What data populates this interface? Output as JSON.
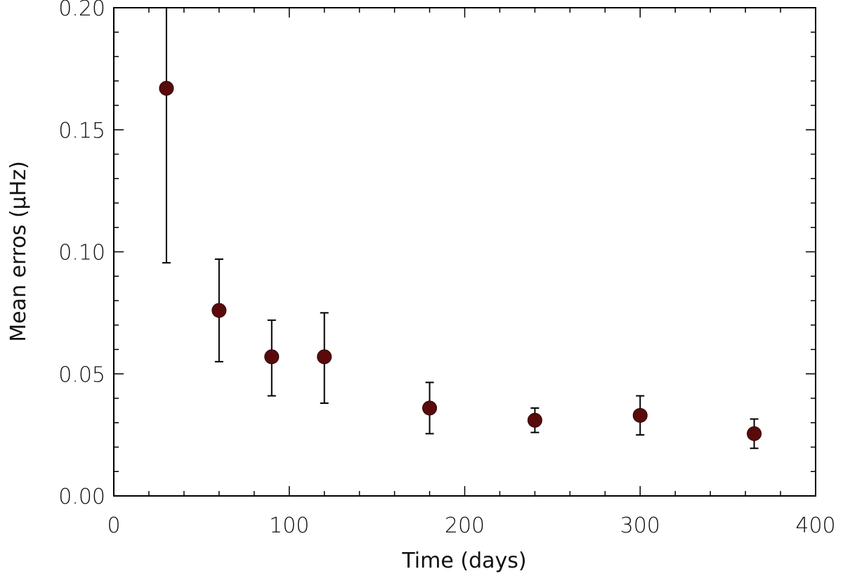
{
  "chart_data": {
    "type": "scatter",
    "title": "",
    "xlabel": "Time (days)",
    "ylabel": "Mean erros (μHz)",
    "xlim": [
      0,
      400
    ],
    "ylim": [
      0,
      0.2
    ],
    "grid": false,
    "x_major_ticks": [
      0,
      100,
      200,
      300,
      400
    ],
    "x_tick_labels": [
      "0",
      "100",
      "200",
      "300",
      "400"
    ],
    "y_major_ticks": [
      0,
      0.05,
      0.1,
      0.15,
      0.2
    ],
    "y_tick_labels": [
      "0.00",
      "0.05",
      "0.10",
      "0.15",
      "0.20"
    ],
    "marker_color": "#5a0a0a",
    "errorbar_color": "#000000",
    "series": [
      {
        "points": [
          {
            "x": 30,
            "y": 0.167,
            "ylow": 0.0955,
            "yhigh": 0.2
          },
          {
            "x": 60,
            "y": 0.076,
            "ylow": 0.055,
            "yhigh": 0.097
          },
          {
            "x": 90,
            "y": 0.057,
            "ylow": 0.041,
            "yhigh": 0.072
          },
          {
            "x": 120,
            "y": 0.057,
            "ylow": 0.038,
            "yhigh": 0.075
          },
          {
            "x": 180,
            "y": 0.036,
            "ylow": 0.0255,
            "yhigh": 0.0465
          },
          {
            "x": 240,
            "y": 0.031,
            "ylow": 0.026,
            "yhigh": 0.036
          },
          {
            "x": 300,
            "y": 0.033,
            "ylow": 0.025,
            "yhigh": 0.041
          },
          {
            "x": 365,
            "y": 0.0255,
            "ylow": 0.0195,
            "yhigh": 0.0315
          }
        ]
      }
    ]
  }
}
